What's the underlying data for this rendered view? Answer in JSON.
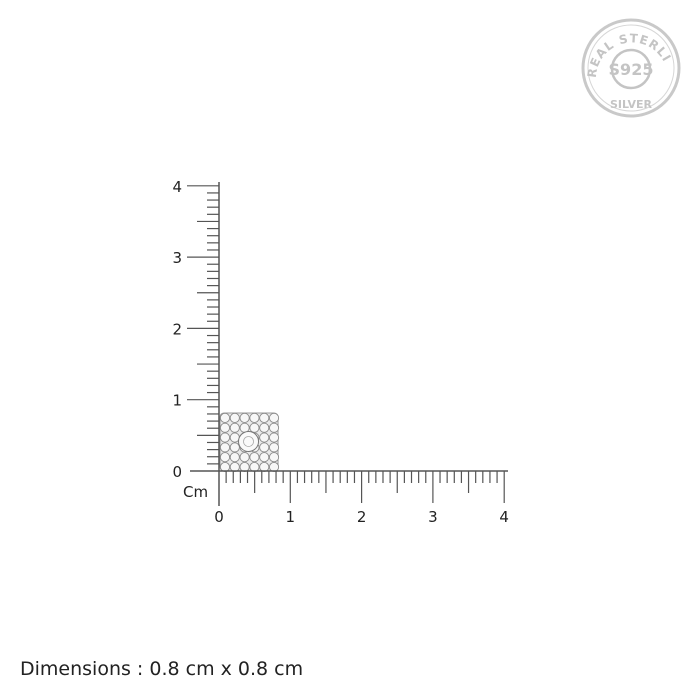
{
  "seal": {
    "top_text": "REAL STERLING",
    "center_text": "S925",
    "bottom_text": "SILVER",
    "color": "#c4c4c4"
  },
  "ruler": {
    "unit_label": "Cm",
    "x_ticks": [
      "0",
      "1",
      "2",
      "3",
      "4"
    ],
    "y_ticks": [
      "0",
      "1",
      "2",
      "3",
      "4"
    ],
    "range_cm": [
      0,
      4
    ],
    "minor_step_cm": 0.1,
    "color": "#555555"
  },
  "product": {
    "width_cm": 0.8,
    "height_cm": 0.8,
    "icon": "square-cluster-stud-earring"
  },
  "caption": "Dimensions : 0.8 cm x 0.8 cm"
}
